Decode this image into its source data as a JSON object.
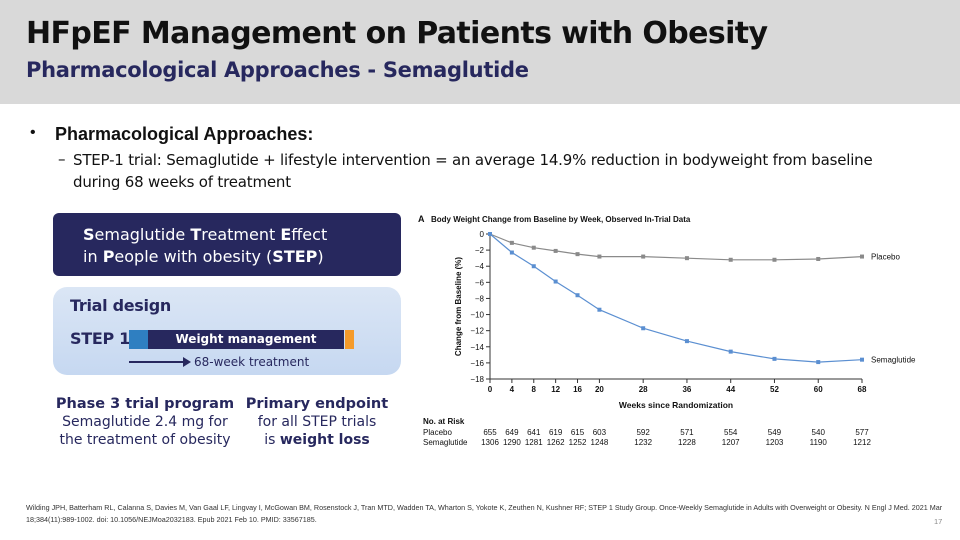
{
  "slide": {
    "title": "HFpEF Management on Patients with Obesity",
    "subtitle": "Pharmacological Approaches - Semaglutide",
    "bullet": "Pharmacological Approaches:",
    "sub_bullet": "STEP-1 trial: Semaglutide + lifestyle intervention = an average 14.9% reduction in bodyweight from baseline during 68 weeks of treatment",
    "page_number": "17",
    "citation": "Wilding JPH, Batterham RL, Calanna S, Davies M, Van Gaal LF, Lingvay I, McGowan BM, Rosenstock J, Tran MTD, Wadden TA, Wharton S, Yokote K, Zeuthen N, Kushner RF; STEP 1 Study Group. Once-Weekly Semaglutide in Adults with Overweight or Obesity. N Engl J Med. 2021 Mar 18;384(11):989-1002. doi: 10.1056/NEJMoa2032183. Epub 2021 Feb 10. PMID: 33567185."
  },
  "infographic": {
    "step_line1": "Semaglutide Treatment Effect",
    "step_line2": "in People with obesity (STEP)",
    "trial_design": "Trial design",
    "step1": "STEP 1",
    "weight_management": "Weight management",
    "treatment_duration": "68-week treatment",
    "phase3_head": "Phase 3 trial program",
    "phase3_line1": "Semaglutide 2.4 mg for",
    "phase3_line2": "the treatment of obesity",
    "endpoint_head": "Primary endpoint",
    "endpoint_line1": "for all STEP trials",
    "endpoint_line2_plain": "is ",
    "endpoint_line2_bold": "weight loss",
    "colors": {
      "navy": "#27285e",
      "blue": "#2f7fc1",
      "orange": "#f59b2b",
      "light": "#c6d8f1"
    }
  },
  "chart_data": {
    "type": "line",
    "panel_label": "A",
    "title": "Body Weight Change from Baseline by Week, Observed In-Trial Data",
    "xlabel": "Weeks since Randomization",
    "ylabel": "Change from Baseline (%)",
    "xlim": [
      0,
      68
    ],
    "ylim": [
      -18,
      0
    ],
    "x_ticks": [
      0,
      4,
      8,
      12,
      16,
      20,
      28,
      36,
      44,
      52,
      60,
      68
    ],
    "y_ticks": [
      0,
      -2,
      -4,
      -6,
      -8,
      -10,
      -12,
      -14,
      -16,
      -18
    ],
    "y_tick_labels": [
      "0",
      "−2",
      "−4",
      "−6",
      "−8",
      "−10",
      "−12",
      "−14",
      "−16",
      "−18"
    ],
    "grid": false,
    "series": [
      {
        "name": "Placebo",
        "color": "#8a8a8a",
        "x": [
          0,
          4,
          8,
          12,
          16,
          20,
          28,
          36,
          44,
          52,
          60,
          68
        ],
        "y": [
          0,
          -1.1,
          -1.7,
          -2.1,
          -2.5,
          -2.8,
          -2.8,
          -3.0,
          -3.2,
          -3.2,
          -3.1,
          -2.8
        ]
      },
      {
        "name": "Semaglutide",
        "color": "#5b8fd1",
        "x": [
          0,
          4,
          8,
          12,
          16,
          20,
          28,
          36,
          44,
          52,
          60,
          68
        ],
        "y": [
          0,
          -2.3,
          -4.0,
          -5.9,
          -7.6,
          -9.4,
          -11.7,
          -13.3,
          -14.6,
          -15.5,
          -15.9,
          -15.6
        ]
      }
    ],
    "risk_table": {
      "header": "No. at Risk",
      "rows": [
        {
          "label": "Placebo",
          "values": [
            "655",
            "649",
            "641",
            "619",
            "615",
            "603",
            "592",
            "571",
            "554",
            "549",
            "540",
            "577"
          ]
        },
        {
          "label": "Semaglutide",
          "values": [
            "1306",
            "1290",
            "1281",
            "1262",
            "1252",
            "1248",
            "1232",
            "1228",
            "1207",
            "1203",
            "1190",
            "1212"
          ]
        }
      ]
    }
  }
}
